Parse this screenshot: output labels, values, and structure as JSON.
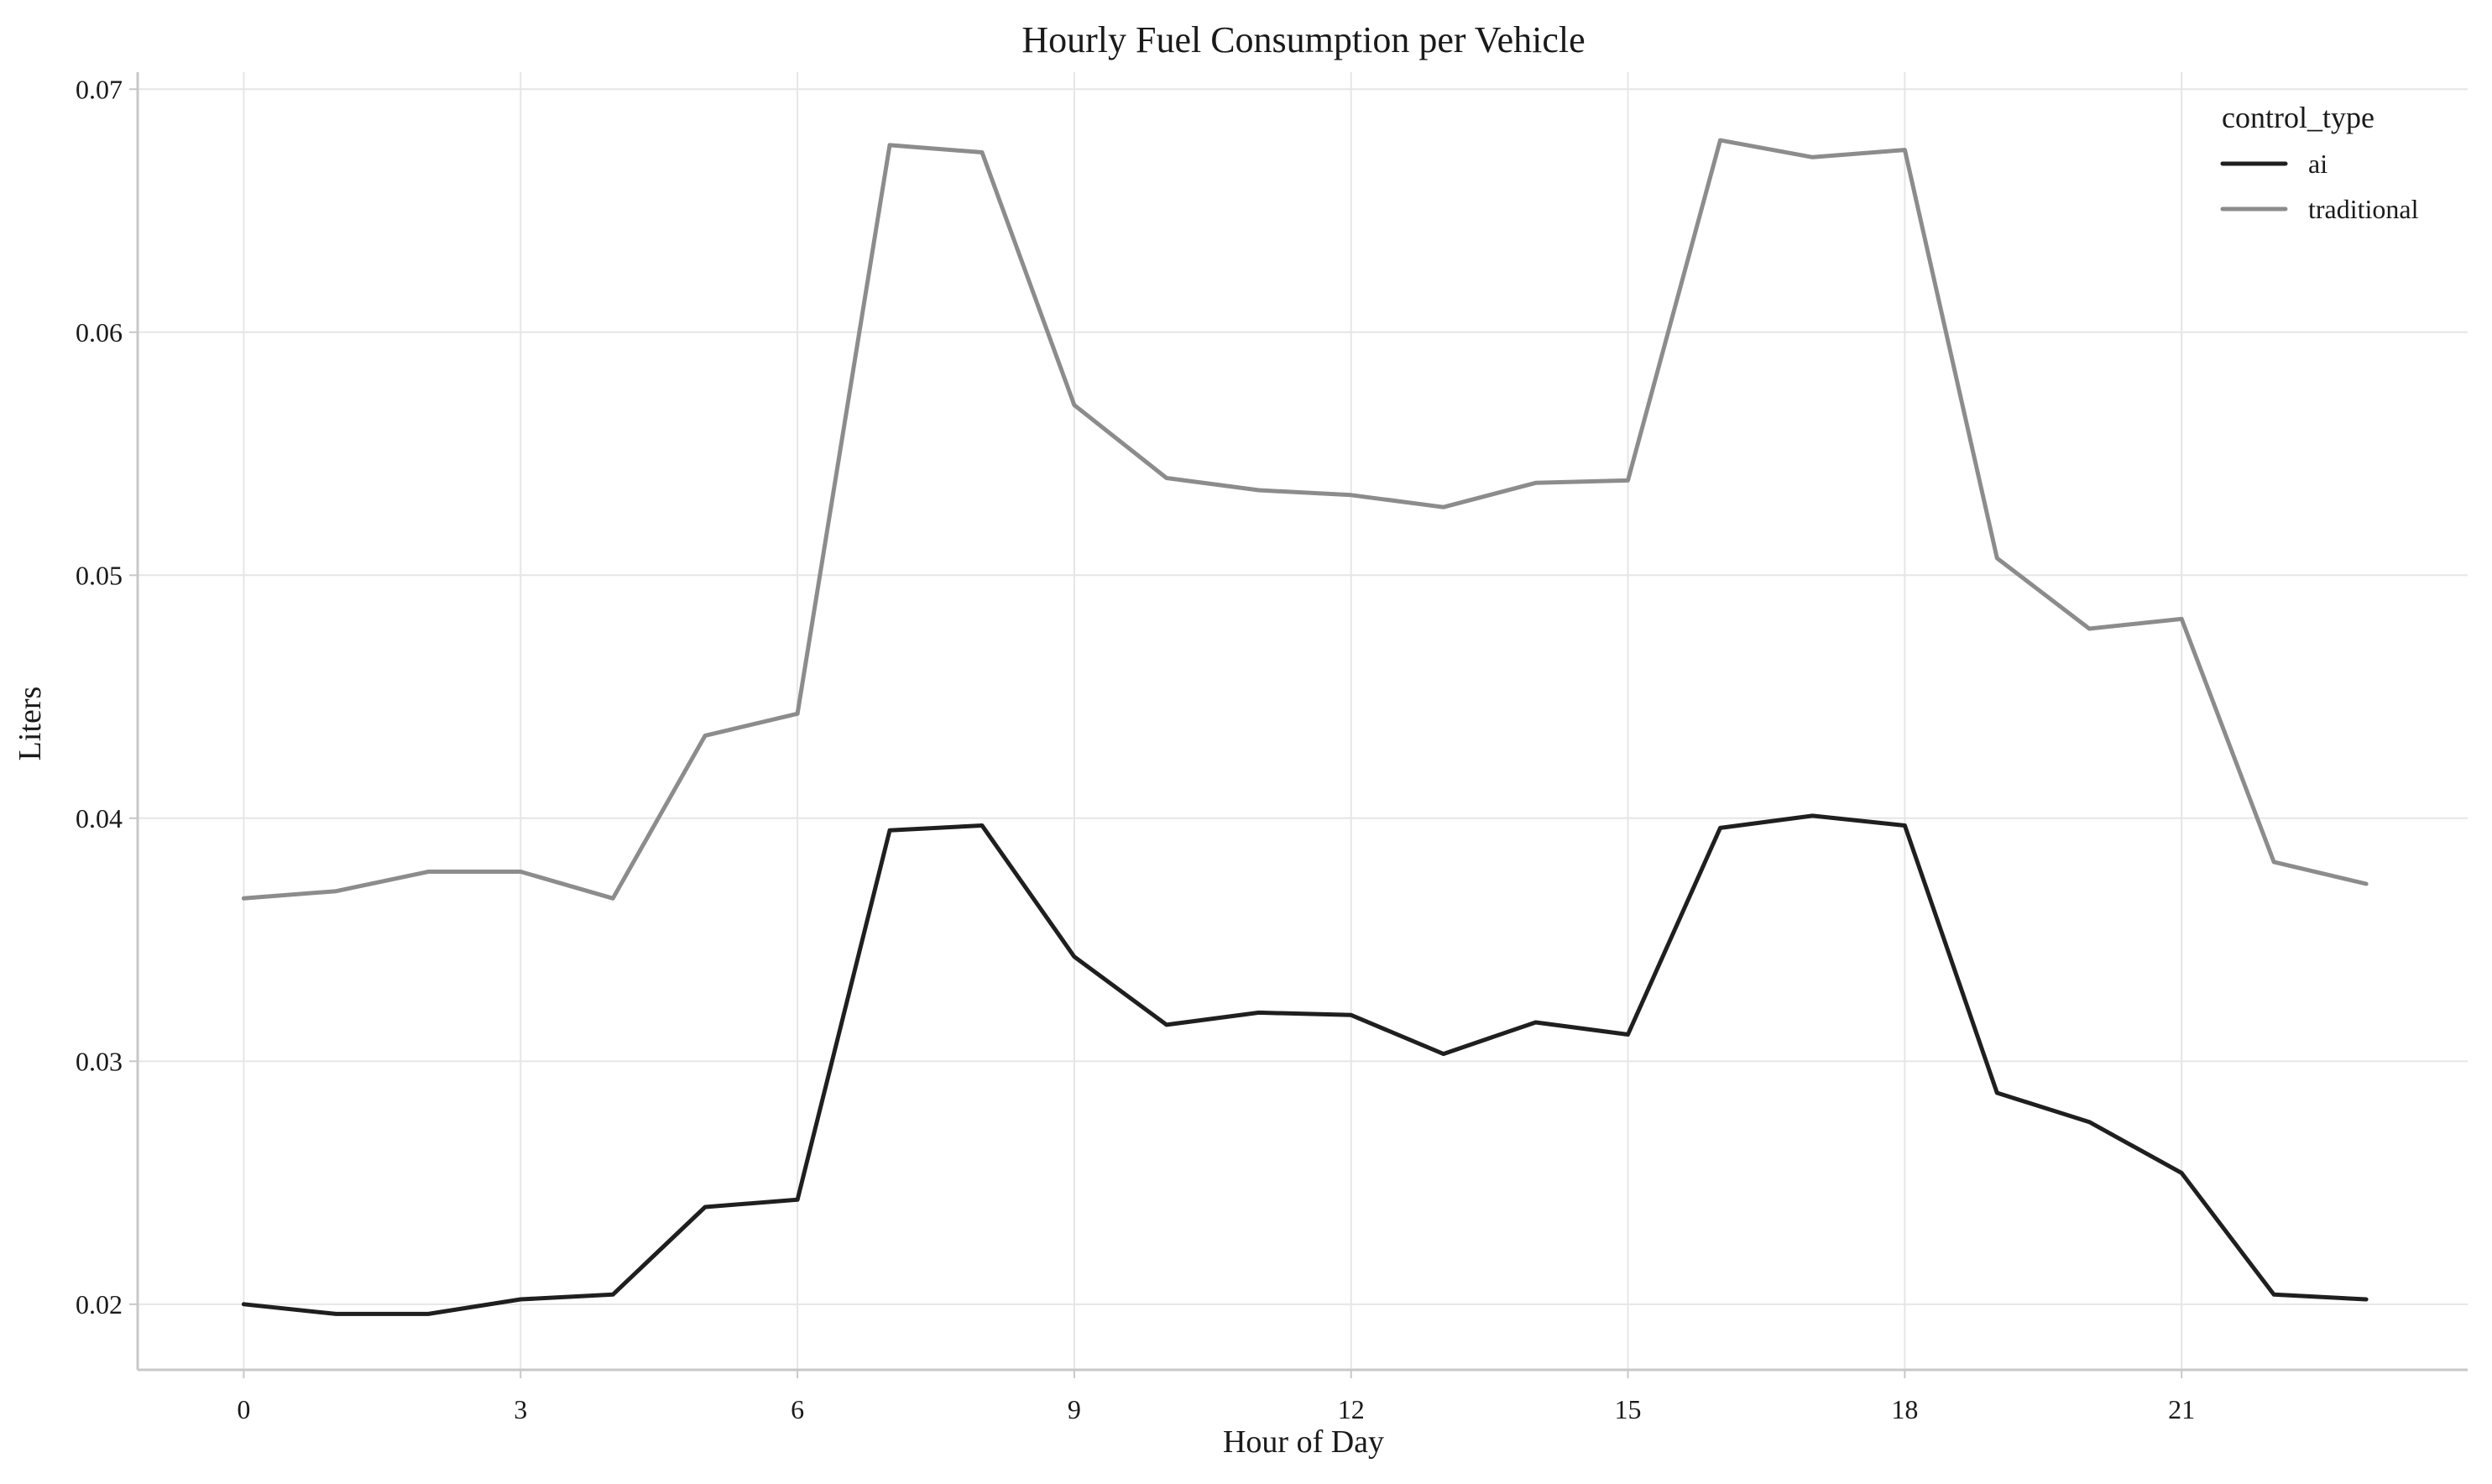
{
  "chart_data": {
    "type": "line",
    "title": "Hourly Fuel Consumption per Vehicle",
    "xlabel": "Hour of Day",
    "ylabel": "Liters",
    "x": [
      0,
      1,
      2,
      3,
      4,
      5,
      6,
      7,
      8,
      9,
      10,
      11,
      12,
      13,
      14,
      15,
      16,
      17,
      18,
      19,
      20,
      21,
      22,
      23
    ],
    "xticks": [
      0,
      3,
      6,
      9,
      12,
      15,
      18,
      21
    ],
    "xtick_labels": [
      "0",
      "3",
      "6",
      "9",
      "12",
      "15",
      "18",
      "21"
    ],
    "yticks": [
      0.02,
      0.03,
      0.04,
      0.05,
      0.06,
      0.07
    ],
    "ytick_labels": [
      "0.02",
      "0.03",
      "0.04",
      "0.05",
      "0.06",
      "0.07"
    ],
    "xlim": [
      -1.15,
      24.1
    ],
    "ylim": [
      0.0173,
      0.0707
    ],
    "grid": true,
    "legend": {
      "title": "control_type",
      "placement": "top-right"
    },
    "series": [
      {
        "name": "ai",
        "color": "#1f1f1f",
        "values": [
          0.02,
          0.0196,
          0.0196,
          0.0202,
          0.0204,
          0.024,
          0.0243,
          0.0395,
          0.0397,
          0.0343,
          0.0315,
          0.032,
          0.0319,
          0.0303,
          0.0316,
          0.0311,
          0.0396,
          0.0401,
          0.0397,
          0.0287,
          0.0275,
          0.0254,
          0.0204,
          0.0202
        ]
      },
      {
        "name": "traditional",
        "color": "#8c8c8c",
        "values": [
          0.0367,
          0.037,
          0.0378,
          0.0378,
          0.0367,
          0.0434,
          0.0443,
          0.0677,
          0.0674,
          0.057,
          0.054,
          0.0535,
          0.0533,
          0.0528,
          0.0538,
          0.0539,
          0.0679,
          0.0672,
          0.0675,
          0.0507,
          0.0478,
          0.0482,
          0.0382,
          0.0373
        ]
      }
    ]
  }
}
